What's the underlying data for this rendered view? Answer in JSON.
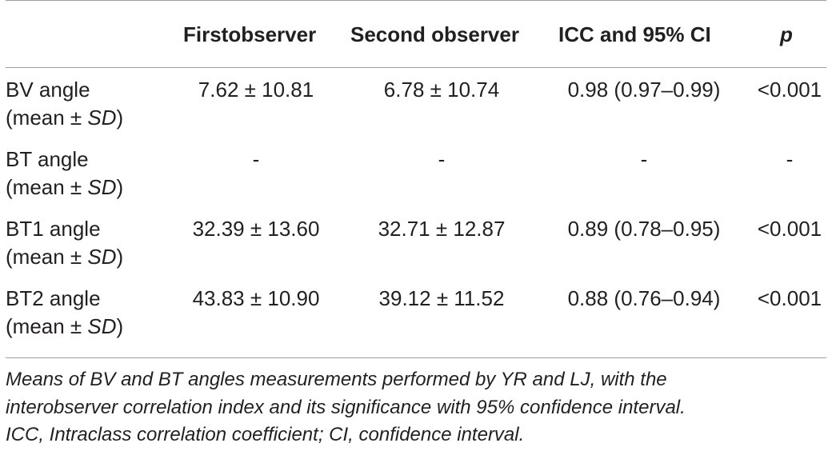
{
  "table": {
    "headers": {
      "label": "",
      "first": "Firstobserver",
      "second": "Second observer",
      "icc": "ICC and 95% CI",
      "p": "p"
    },
    "rows": [
      {
        "label_main": "BV angle",
        "label_sub_prefix": "(mean ± ",
        "label_sub_sd": "SD",
        "label_sub_suffix": ")",
        "first": "7.62 ± 10.81",
        "second": "6.78 ± 10.74",
        "icc": "0.98 (0.97–0.99)",
        "p": "<0.001"
      },
      {
        "label_main": "BT angle",
        "label_sub_prefix": "(mean ± ",
        "label_sub_sd": "SD",
        "label_sub_suffix": ")",
        "first": "-",
        "second": "-",
        "icc": "-",
        "p": "-"
      },
      {
        "label_main": "BT1 angle",
        "label_sub_prefix": "(mean ± ",
        "label_sub_sd": "SD",
        "label_sub_suffix": ")",
        "first": "32.39 ± 13.60",
        "second": "32.71 ± 12.87",
        "icc": "0.89 (0.78–0.95)",
        "p": "<0.001"
      },
      {
        "label_main": "BT2 angle",
        "label_sub_prefix": "(mean ± ",
        "label_sub_sd": "SD",
        "label_sub_suffix": ")",
        "first": "43.83 ± 10.90",
        "second": "39.12 ± 11.52",
        "icc": "0.88 (0.76–0.94)",
        "p": "<0.001"
      }
    ]
  },
  "footnote": {
    "line1": "Means of BV and BT angles measurements performed by YR and LJ, with the",
    "line2": "interobserver correlation index and its significance with 95% confidence interval.",
    "line3": "ICC, Intraclass correlation coefficient; CI, confidence interval."
  }
}
